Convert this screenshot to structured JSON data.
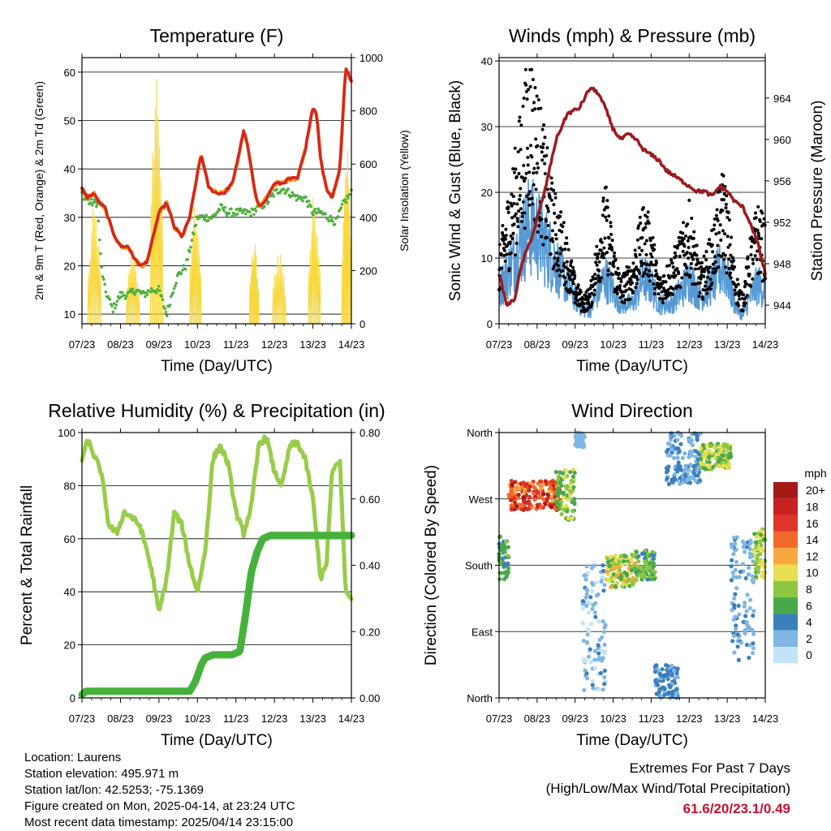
{
  "colors": {
    "temp": "#d4261e",
    "temp9m": "#f39c1a",
    "dew": "#4fb03e",
    "solar": "#f7d83d",
    "wind": "#5699d3",
    "gust": "#000000",
    "pressure": "#9b1b1e",
    "rh": "#98cc4a",
    "precip": "#46b23c",
    "accent": "#c8102e"
  },
  "time_ticks": [
    "07/23",
    "08/23",
    "09/23",
    "10/23",
    "11/23",
    "12/23",
    "13/23",
    "14/23"
  ],
  "chart_data": [
    {
      "type": "line",
      "title": "Temperature (F)",
      "xlabel": "Time (Day/UTC)",
      "ylabel": "2m & 9m T (Red, Orange) & 2m Td (Green)",
      "ylabel_right": "Solar Insolation (Yellow)",
      "xlim": [
        0,
        7
      ],
      "ylim": [
        8,
        63
      ],
      "ylim_right": [
        0,
        1000
      ],
      "yticks": [
        10,
        20,
        30,
        40,
        50,
        60
      ],
      "yticks_right": [
        0,
        200,
        400,
        600,
        800,
        1000
      ],
      "series": [
        {
          "role": "temp",
          "x": [
            0,
            0.15,
            0.3,
            0.45,
            0.6,
            0.8,
            1.0,
            1.2,
            1.4,
            1.55,
            1.7,
            1.85,
            2.0,
            2.2,
            2.4,
            2.6,
            2.8,
            3.0,
            3.1,
            3.3,
            3.5,
            3.7,
            3.9,
            4.0,
            4.1,
            4.2,
            4.3,
            4.4,
            4.5,
            4.6,
            4.8,
            5.0,
            5.2,
            5.4,
            5.6,
            5.8,
            6.0,
            6.1,
            6.2,
            6.35,
            6.5,
            6.7,
            6.85,
            7.0
          ],
          "y": [
            36,
            34,
            35,
            33,
            32,
            27,
            24,
            24,
            21,
            20,
            21,
            26,
            31,
            33,
            28,
            26,
            30,
            39,
            43,
            36,
            35,
            35,
            37,
            40,
            44,
            48,
            45,
            40,
            35,
            32,
            34,
            37,
            37,
            38,
            38,
            44,
            53,
            51,
            42,
            36,
            34,
            40,
            61,
            58
          ]
        },
        {
          "role": "dew",
          "x": [
            0,
            0.2,
            0.4,
            0.5,
            0.6,
            0.8,
            1.0,
            1.2,
            1.4,
            1.6,
            1.8,
            2.0,
            2.2,
            2.4,
            2.5,
            2.7,
            3.0,
            3.2,
            3.4,
            3.6,
            3.8,
            4.0,
            4.2,
            4.4,
            4.6,
            4.8,
            5.0,
            5.2,
            5.4,
            5.6,
            5.8,
            6.0,
            6.2,
            6.4,
            6.6,
            6.8,
            7.0
          ],
          "y": [
            35,
            33,
            33,
            20,
            15,
            11,
            14,
            14,
            15,
            14,
            15,
            15,
            10,
            16,
            18,
            20,
            30,
            30,
            30,
            32,
            31,
            31,
            31,
            31,
            32,
            33,
            35,
            36,
            35,
            34,
            34,
            31,
            31,
            30,
            29,
            33,
            35
          ]
        },
        {
          "role": "solar",
          "name": "",
          "pulses": [
            [
              0.15,
              0.5,
              450
            ],
            [
              1.15,
              1.5,
              300
            ],
            [
              1.78,
              2.1,
              1000
            ],
            [
              2.8,
              3.1,
              480
            ],
            [
              4.35,
              4.6,
              320
            ],
            [
              4.95,
              5.3,
              300
            ],
            [
              5.88,
              6.2,
              500
            ],
            [
              6.75,
              7.0,
              720
            ]
          ]
        }
      ]
    },
    {
      "type": "line",
      "title": "Winds (mph) & Pressure (mb)",
      "xlabel": "Time (Day/UTC)",
      "ylabel": "Sonic Wind & Gust (Blue, Black)",
      "ylabel_right": "Station Pressure (Maroon)",
      "xlim": [
        0,
        7
      ],
      "ylim": [
        0,
        40.5
      ],
      "ylim_right": [
        942.2,
        967.9
      ],
      "yticks": [
        0,
        10,
        20,
        30,
        40
      ],
      "yticks_right": [
        944,
        948,
        952,
        956,
        960,
        964
      ],
      "series": [
        {
          "role": "wind",
          "x": [
            0,
            0.4,
            0.8,
            1.1,
            1.4,
            1.7,
            2.0,
            2.2,
            2.4,
            2.6,
            2.8,
            3.0,
            3.2,
            3.5,
            3.8,
            4.0,
            4.2,
            4.5,
            4.8,
            5.0,
            5.3,
            5.6,
            5.9,
            6.2,
            6.4,
            6.6,
            6.8,
            7.0
          ],
          "y": [
            5,
            10,
            15,
            13,
            10,
            7,
            4,
            2,
            2,
            5,
            7,
            5,
            3,
            3,
            7,
            6,
            3,
            3,
            5,
            7,
            4,
            6,
            9,
            3,
            1,
            4,
            6,
            5
          ]
        },
        {
          "role": "gust",
          "x": [
            0,
            0.4,
            0.8,
            1.1,
            1.4,
            1.7,
            2.0,
            2.2,
            2.4,
            2.6,
            2.8,
            3.0,
            3.2,
            3.5,
            3.8,
            4.0,
            4.2,
            4.5,
            4.8,
            5.0,
            5.3,
            5.6,
            5.9,
            6.2,
            6.4,
            6.6,
            6.8,
            7.0
          ],
          "y": [
            8,
            18,
            30,
            23,
            15,
            11,
            5,
            3,
            4,
            10,
            15,
            9,
            5,
            7,
            13,
            11,
            5,
            7,
            10,
            13,
            6,
            10,
            17,
            6,
            3,
            9,
            13,
            11
          ]
        },
        {
          "role": "pressure",
          "x": [
            0,
            0.2,
            0.4,
            0.6,
            0.9,
            1.2,
            1.5,
            1.8,
            2.1,
            2.4,
            2.6,
            2.8,
            3.0,
            3.2,
            3.4,
            3.6,
            3.8,
            4.0,
            4.2,
            4.4,
            4.6,
            4.8,
            5.0,
            5.2,
            5.4,
            5.6,
            5.8,
            6.0,
            6.2,
            6.4,
            6.6,
            6.8,
            7.0
          ],
          "y": [
            947,
            944,
            944.5,
            948,
            951,
            955,
            960,
            962.5,
            963,
            965,
            964.5,
            963,
            961,
            960,
            960.5,
            960,
            959,
            958.5,
            958,
            957,
            956.5,
            956,
            955.5,
            955,
            955,
            954.5,
            955.5,
            955,
            954,
            953.5,
            952,
            950,
            947
          ]
        }
      ]
    },
    {
      "type": "line",
      "title": "Relative Humidity (%) & Precipitation (in)",
      "xlabel": "Time (Day/UTC)",
      "ylabel": "Percent & Total Rainfall",
      "xlim": [
        0,
        7
      ],
      "ylim": [
        0,
        100
      ],
      "ylim_right": [
        0,
        0.8
      ],
      "yticks": [
        0,
        20,
        40,
        60,
        80,
        100
      ],
      "yticks_right": [
        "0.00",
        "0.20",
        "0.40",
        "0.60",
        "0.80"
      ],
      "series": [
        {
          "role": "rh",
          "x": [
            0,
            0.15,
            0.3,
            0.5,
            0.7,
            0.9,
            1.1,
            1.3,
            1.5,
            1.7,
            1.85,
            2.0,
            2.2,
            2.4,
            2.6,
            2.8,
            3.0,
            3.2,
            3.4,
            3.6,
            3.8,
            4.0,
            4.2,
            4.4,
            4.6,
            4.8,
            5.0,
            5.2,
            5.4,
            5.6,
            5.8,
            6.0,
            6.2,
            6.35,
            6.5,
            6.7,
            6.85,
            7.0
          ],
          "y": [
            90,
            97,
            92,
            85,
            65,
            62,
            70,
            68,
            65,
            55,
            45,
            32,
            45,
            70,
            65,
            50,
            40,
            55,
            90,
            95,
            88,
            70,
            62,
            72,
            96,
            98,
            85,
            80,
            95,
            96,
            90,
            75,
            45,
            50,
            85,
            90,
            40,
            38
          ]
        },
        {
          "role": "precip",
          "x": [
            0,
            0.1,
            1.0,
            2.0,
            2.8,
            2.95,
            3.1,
            3.2,
            3.4,
            3.9,
            4.1,
            4.25,
            4.4,
            4.55,
            4.7,
            4.9,
            5.2,
            7.0
          ],
          "y": [
            0.01,
            0.02,
            0.02,
            0.02,
            0.02,
            0.05,
            0.1,
            0.12,
            0.13,
            0.13,
            0.14,
            0.25,
            0.38,
            0.44,
            0.48,
            0.49,
            0.49,
            0.49
          ]
        }
      ]
    },
    {
      "type": "scatter",
      "title": "Wind Direction",
      "xlabel": "Time (Day/UTC)",
      "ylabel": "Direction (Colored By Speed)",
      "xlim": [
        0,
        7
      ],
      "ylim": [
        0,
        360
      ],
      "yticks": [
        {
          "value": 0,
          "label": "North"
        },
        {
          "value": 90,
          "label": "East"
        },
        {
          "value": 180,
          "label": "South"
        },
        {
          "value": 270,
          "label": "West"
        },
        {
          "value": 360,
          "label": "North"
        }
      ],
      "legend": {
        "title": "mph",
        "labels": [
          "20+",
          "18",
          "16",
          "14",
          "12",
          "10",
          "8",
          "6",
          "4",
          "2",
          "0"
        ],
        "colors": [
          "#a51a17",
          "#c7221f",
          "#e0352a",
          "#f26a2b",
          "#f9a73f",
          "#e7de50",
          "#8ec640",
          "#49a84a",
          "#3b7fbd",
          "#7fb6e3",
          "#c3e3f7"
        ]
      },
      "clusters": [
        {
          "x0": 0.0,
          "x1": 0.25,
          "d0": 160,
          "d1": 220,
          "s0": 4,
          "s1": 8
        },
        {
          "x0": 0.25,
          "x1": 1.6,
          "d0": 255,
          "d1": 295,
          "s0": 12,
          "s1": 20
        },
        {
          "x0": 1.5,
          "x1": 2.0,
          "d0": 240,
          "d1": 310,
          "s0": 5,
          "s1": 10
        },
        {
          "x0": 2.0,
          "x1": 2.25,
          "d0": 340,
          "d1": 360,
          "s0": 1,
          "s1": 3
        },
        {
          "x0": 2.2,
          "x1": 2.8,
          "d0": 10,
          "d1": 180,
          "s0": 0,
          "s1": 4
        },
        {
          "x0": 2.8,
          "x1": 3.6,
          "d0": 150,
          "d1": 195,
          "s0": 6,
          "s1": 12
        },
        {
          "x0": 3.6,
          "x1": 4.1,
          "d0": 160,
          "d1": 200,
          "s0": 4,
          "s1": 9
        },
        {
          "x0": 4.1,
          "x1": 4.7,
          "d0": 0,
          "d1": 45,
          "s0": 2,
          "s1": 5
        },
        {
          "x0": 4.4,
          "x1": 5.3,
          "d0": 290,
          "d1": 360,
          "s0": 1,
          "s1": 5
        },
        {
          "x0": 5.3,
          "x1": 6.1,
          "d0": 310,
          "d1": 345,
          "s0": 5,
          "s1": 11
        },
        {
          "x0": 6.1,
          "x1": 6.7,
          "d0": 50,
          "d1": 220,
          "s0": 1,
          "s1": 4
        },
        {
          "x0": 6.7,
          "x1": 7.0,
          "d0": 160,
          "d1": 230,
          "s0": 6,
          "s1": 11
        }
      ]
    }
  ],
  "info": {
    "location": "Location: Laurens",
    "elevation": "Station elevation: 495.971 m",
    "latlon": "Station lat/lon: 42.5253; -75.1369",
    "created": "Figure created on Mon, 2025-04-14, at 23:24 UTC",
    "recent": "Most recent data timestamp: 2025/04/14 23:15:00"
  },
  "extremes": {
    "title": "Extremes For Past 7 Days",
    "subtitle": "(High/Low/Max Wind/Total Precipitation)",
    "values": "61.6/20/23.1/0.49"
  }
}
